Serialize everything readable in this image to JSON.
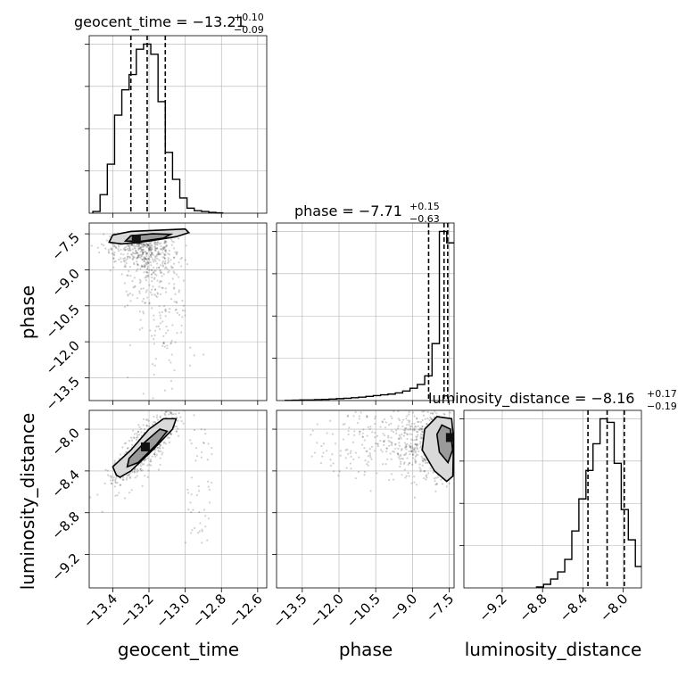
{
  "chart_data": {
    "type": "corner",
    "parameters": [
      {
        "name": "geocent_time",
        "axis_label": "geocent_time",
        "title": "geocent_time = −13.21",
        "sup": "+0.10",
        "sub": "−0.09",
        "range": [
          -13.53,
          -12.55
        ],
        "ticks": [
          -13.4,
          -13.2,
          -13.0,
          -12.8,
          -12.6
        ],
        "tick_labels": [
          "−13.4",
          "−13.2",
          "−13.0",
          "−12.8",
          "−12.6"
        ],
        "quantiles": [
          -13.3,
          -13.21,
          -13.11
        ],
        "hist_edges": [
          -13.51,
          -13.47,
          -13.43,
          -13.39,
          -13.35,
          -13.31,
          -13.27,
          -13.23,
          -13.19,
          -13.15,
          -13.11,
          -13.07,
          -13.03,
          -12.99,
          -12.95,
          -12.91,
          -12.87,
          -12.83,
          -12.79
        ],
        "hist_counts": [
          0.01,
          0.11,
          0.29,
          0.58,
          0.73,
          0.82,
          0.97,
          1.0,
          0.94,
          0.66,
          0.36,
          0.2,
          0.09,
          0.03,
          0.015,
          0.01,
          0.005,
          0.002
        ]
      },
      {
        "name": "phase",
        "axis_label": "phase",
        "title": "phase = −7.71",
        "sup": "+0.15",
        "sub": "−0.63",
        "range": [
          -14.55,
          -7.3
        ],
        "ticks": [
          -13.5,
          -12.0,
          -10.5,
          -9.0,
          -7.5
        ],
        "tick_labels": [
          "−13.5",
          "−12.0",
          "−10.5",
          "−9.0",
          "−7.5"
        ],
        "quantiles": [
          -8.34,
          -7.71,
          -7.56
        ],
        "hist_edges": [
          -14.2,
          -13.9,
          -13.6,
          -13.3,
          -13.0,
          -12.7,
          -12.4,
          -12.1,
          -11.8,
          -11.5,
          -11.2,
          -10.9,
          -10.6,
          -10.3,
          -10.0,
          -9.7,
          -9.4,
          -9.1,
          -8.8,
          -8.5,
          -8.2,
          -7.9,
          -7.6,
          -7.3
        ],
        "hist_counts": [
          0.001,
          0.002,
          0.003,
          0.003,
          0.005,
          0.006,
          0.008,
          0.01,
          0.012,
          0.015,
          0.018,
          0.022,
          0.026,
          0.03,
          0.034,
          0.04,
          0.05,
          0.065,
          0.085,
          0.13,
          0.3,
          0.89,
          0.83
        ]
      },
      {
        "name": "luminosity_distance",
        "axis_label": "luminosity_distance",
        "title": "luminosity_distance = −8.16",
        "sup": "+0.17",
        "sub": "−0.19",
        "range": [
          -9.58,
          -7.82
        ],
        "ticks": [
          -9.2,
          -8.8,
          -8.4,
          -8.0
        ],
        "tick_labels": [
          "−9.2",
          "−8.8",
          "−8.4",
          "−8.0"
        ],
        "quantiles": [
          -8.35,
          -8.16,
          -7.99
        ],
        "hist_edges": [
          -8.86,
          -8.79,
          -8.72,
          -8.65,
          -8.58,
          -8.51,
          -8.44,
          -8.37,
          -8.3,
          -8.23,
          -8.16,
          -8.09,
          -8.02,
          -7.95,
          -7.88,
          -7.82
        ],
        "hist_counts": [
          0.005,
          0.02,
          0.05,
          0.09,
          0.16,
          0.32,
          0.5,
          0.66,
          0.81,
          0.95,
          0.93,
          0.7,
          0.44,
          0.27,
          0.12
        ]
      }
    ],
    "pairs": [
      {
        "x": "geocent_time",
        "y": "phase",
        "y_ticks": [
          -7.5,
          -9.0,
          -10.5,
          -12.0,
          -13.5
        ],
        "y_tick_labels": [
          "−7.5",
          "−9.0",
          "−10.5",
          "−12.0",
          "−13.5"
        ],
        "y_range": [
          -14.45,
          -7.05
        ],
        "mode": [
          -13.27,
          -7.72
        ],
        "contours": [
          [
            [
              -13.42,
              -7.85
            ],
            [
              -13.4,
              -7.55
            ],
            [
              -13.3,
              -7.4
            ],
            [
              -13.15,
              -7.35
            ],
            [
              -13.0,
              -7.3
            ],
            [
              -12.98,
              -7.45
            ],
            [
              -13.05,
              -7.62
            ],
            [
              -13.2,
              -7.8
            ],
            [
              -13.35,
              -7.92
            ]
          ],
          [
            [
              -13.33,
              -7.8
            ],
            [
              -13.3,
              -7.58
            ],
            [
              -13.18,
              -7.5
            ],
            [
              -13.08,
              -7.52
            ],
            [
              -13.12,
              -7.68
            ],
            [
              -13.25,
              -7.82
            ]
          ]
        ],
        "scatter_extent": {
          "x": [
            -13.5,
            -12.75
          ],
          "y": [
            -13.7,
            -7.3
          ]
        }
      },
      {
        "x": "geocent_time",
        "y": "luminosity_distance",
        "y_ticks": [
          -8.0,
          -8.4,
          -8.8,
          -9.2
        ],
        "y_tick_labels": [
          "−8.0",
          "−8.4",
          "−8.8",
          "−9.2"
        ],
        "y_range": [
          -9.52,
          -7.82
        ],
        "mode": [
          -13.22,
          -8.17
        ],
        "contours": [
          [
            [
              -13.38,
              -8.44
            ],
            [
              -13.4,
              -8.36
            ],
            [
              -13.3,
              -8.2
            ],
            [
              -13.2,
              -8.0
            ],
            [
              -13.12,
              -7.9
            ],
            [
              -13.05,
              -7.9
            ],
            [
              -13.07,
              -8.0
            ],
            [
              -13.18,
              -8.2
            ],
            [
              -13.3,
              -8.4
            ],
            [
              -13.36,
              -8.46
            ]
          ],
          [
            [
              -13.32,
              -8.36
            ],
            [
              -13.31,
              -8.28
            ],
            [
              -13.22,
              -8.12
            ],
            [
              -13.14,
              -8.0
            ],
            [
              -13.1,
              -8.02
            ],
            [
              -13.16,
              -8.15
            ],
            [
              -13.26,
              -8.32
            ]
          ]
        ],
        "scatter_extent": {
          "x": [
            -13.5,
            -12.8
          ],
          "y": [
            -9.2,
            -7.85
          ]
        }
      },
      {
        "x": "phase",
        "y": "luminosity_distance",
        "y_ticks": [
          -8.0,
          -8.4,
          -8.8,
          -9.2
        ],
        "y_tick_labels": [
          "−8.0",
          "−8.4",
          "−8.8",
          "−9.2"
        ],
        "y_range": [
          -9.52,
          -7.82
        ],
        "mode": [
          -7.45,
          -8.08
        ],
        "contours": [
          [
            [
              -7.6,
              -8.5
            ],
            [
              -8.1,
              -8.4
            ],
            [
              -8.6,
              -8.2
            ],
            [
              -8.5,
              -8.0
            ],
            [
              -8.0,
              -7.88
            ],
            [
              -7.4,
              -7.9
            ],
            [
              -7.32,
              -8.1
            ],
            [
              -7.35,
              -8.45
            ]
          ],
          [
            [
              -7.55,
              -8.32
            ],
            [
              -7.9,
              -8.22
            ],
            [
              -8.0,
              -8.05
            ],
            [
              -7.8,
              -7.96
            ],
            [
              -7.45,
              -8.0
            ],
            [
              -7.36,
              -8.2
            ]
          ]
        ],
        "scatter_extent": {
          "x": [
            -13.0,
            -7.3
          ],
          "y": [
            -8.9,
            -7.85
          ]
        }
      }
    ],
    "grid": true
  }
}
